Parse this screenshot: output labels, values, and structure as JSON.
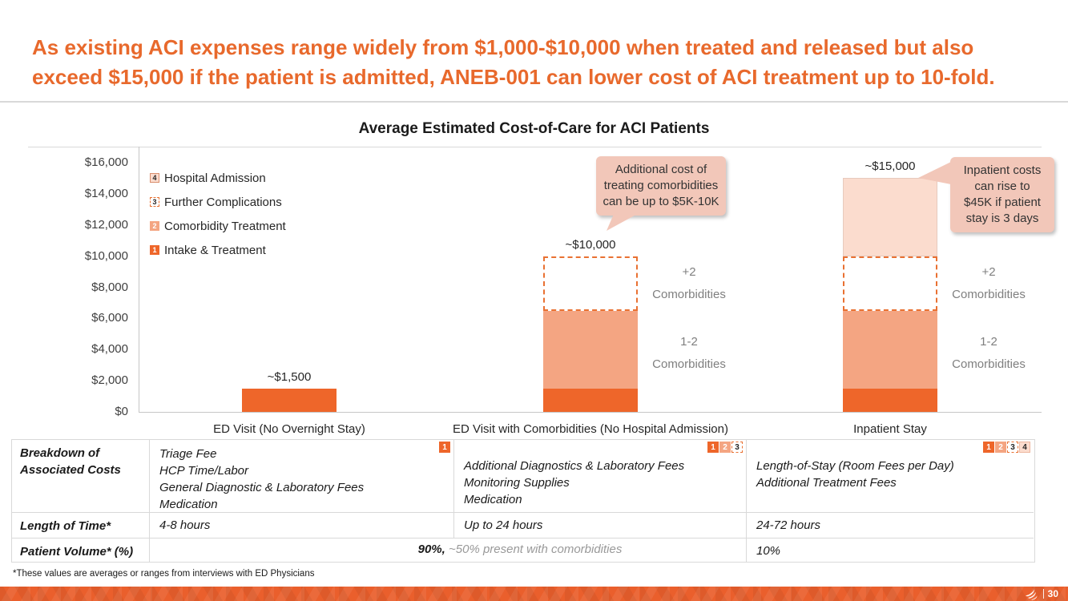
{
  "colors": {
    "accent_orange": "#E8692C",
    "bar_intake": "#EE662A",
    "bar_comorbidity": "#F4A582",
    "dashed_orange": "#E97132",
    "bar_admission": "#FBDCCE",
    "callout_bg": "#F2C7B9",
    "footer_orange": "#EA5F2C",
    "gray_text": "#7F7F7F",
    "grid": "#D9D9D9"
  },
  "header": {
    "title_lines": [
      "As existing ACI expenses range widely from $1,000-$10,000 when treated and released but also",
      "exceed $15,000 if the patient is admitted, ANEB-001 can lower cost of ACI treatment up to 10-fold."
    ]
  },
  "chart_data": {
    "type": "bar",
    "stacked": true,
    "title": "Average Estimated Cost-of-Care for ACI Patients",
    "categories": [
      "ED Visit (No Overnight Stay)",
      "ED Visit with Comorbidities (No Hospital Admission)",
      "Inpatient Stay"
    ],
    "series": [
      {
        "name": "Intake & Treatment",
        "key": "1",
        "color": "#EE662A",
        "pattern": "solid",
        "values": [
          1500,
          1500,
          1500
        ]
      },
      {
        "name": "Comorbidity Treatment",
        "key": "2",
        "color": "#F4A582",
        "pattern": "solid",
        "values": [
          0,
          5000,
          5000
        ]
      },
      {
        "name": "Further Complications",
        "key": "3",
        "color": "#FFFFFF",
        "border": "#E97132",
        "pattern": "dashed",
        "values": [
          0,
          3500,
          3500
        ]
      },
      {
        "name": "Hospital Admission",
        "key": "4",
        "color": "#FBDCCE",
        "pattern": "solid",
        "values": [
          0,
          0,
          5000
        ]
      }
    ],
    "bar_total_labels": [
      "~$1,500",
      "~$10,000",
      "~$15,000"
    ],
    "legend": [
      {
        "key": "4",
        "label": "Hospital Admission"
      },
      {
        "key": "3",
        "label": "Further Complications"
      },
      {
        "key": "2",
        "label": "Comorbidity Treatment"
      },
      {
        "key": "1",
        "label": "Intake & Treatment"
      }
    ],
    "ylim": [
      0,
      16000
    ],
    "ytick_step": 2000,
    "yticks_top_to_bottom": [
      "$16,000",
      "$14,000",
      "$12,000",
      "$10,000",
      "$8,000",
      "$6,000",
      "$4,000",
      "$2,000",
      "$0"
    ],
    "grid": "off",
    "legend_position": "upper-left",
    "side_labels": [
      {
        "bar_index": 1,
        "upper": [
          "+2",
          "Comorbidities"
        ],
        "lower": [
          "1-2",
          "Comorbidities"
        ]
      },
      {
        "bar_index": 2,
        "upper": [
          "+2",
          "Comorbidities"
        ],
        "lower": [
          "1-2",
          "Comorbidities"
        ]
      }
    ],
    "callouts": [
      {
        "id": "comorbidity-cost",
        "lines": [
          "Additional cost of",
          "treating comorbidities",
          "can be up to $5K-10K"
        ]
      },
      {
        "id": "inpatient-cost",
        "lines": [
          "Inpatient costs",
          "can rise to",
          "$45K if patient",
          "stay is 3 days"
        ]
      }
    ]
  },
  "table": {
    "row1_label_lines": [
      "Breakdown of",
      "Associated Costs"
    ],
    "row2_label": "Length of Time*",
    "row3_label": "Patient Volume* (%)",
    "breakdown": {
      "col1": {
        "badges": [
          1
        ],
        "lines": [
          "Triage Fee",
          "HCP Time/Labor",
          "General Diagnostic & Laboratory Fees",
          "Medication"
        ]
      },
      "col2": {
        "badges": [
          1,
          2,
          3
        ],
        "lines": [
          "Additional Diagnostics & Laboratory Fees",
          "Monitoring Supplies",
          "Medication"
        ]
      },
      "col3": {
        "badges": [
          1,
          2,
          3,
          4
        ],
        "lines": [
          "Length-of-Stay (Room Fees per Day)",
          "Additional Treatment Fees"
        ]
      }
    },
    "length_of_time": [
      "4-8 hours",
      "Up to 24 hours",
      "24-72 hours"
    ],
    "patient_volume": {
      "primary": "90%,",
      "secondary": " ~50% present with comorbidities",
      "col3": "10%"
    }
  },
  "footnote": "*These values are averages or ranges from interviews with ED Physicians",
  "footer": {
    "page_number": "30",
    "logo_icon": "swoosh-bird-logo"
  }
}
